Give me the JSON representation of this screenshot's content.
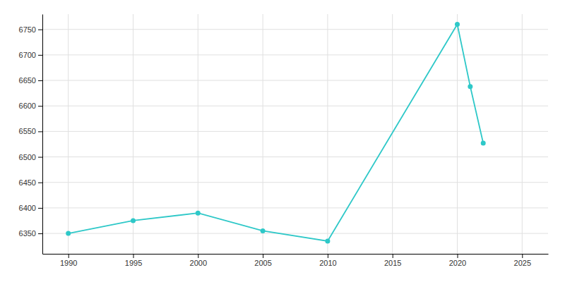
{
  "chart_data": {
    "type": "line",
    "x": [
      1990,
      1995,
      2000,
      2005,
      2010,
      2020,
      2021,
      2022
    ],
    "values": [
      6350,
      6375,
      6390,
      6355,
      6335,
      6760,
      6638,
      6527
    ],
    "color": "#2ec8c8",
    "marker": "circle",
    "xlim": [
      1988,
      2027
    ],
    "ylim": [
      6310,
      6780
    ],
    "xticks": [
      1990,
      1995,
      2000,
      2005,
      2010,
      2015,
      2020,
      2025
    ],
    "yticks": [
      6350,
      6400,
      6450,
      6500,
      6550,
      6600,
      6650,
      6700,
      6750
    ],
    "grid": true
  }
}
